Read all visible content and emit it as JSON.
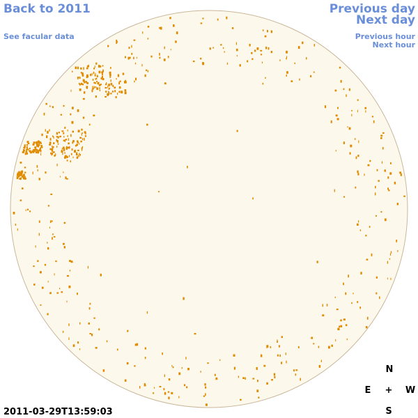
{
  "links": {
    "back": "Back to 2011",
    "facular": "See facular data",
    "previous_day": "Previous day",
    "next_day": "Next day",
    "previous_hour": "Previous hour",
    "next_hour": "Next hour"
  },
  "timestamp": "2011-03-29T13:59:03",
  "compass": {
    "north": "N",
    "east": "E",
    "center": "+",
    "west": "W",
    "south": "S"
  }
}
